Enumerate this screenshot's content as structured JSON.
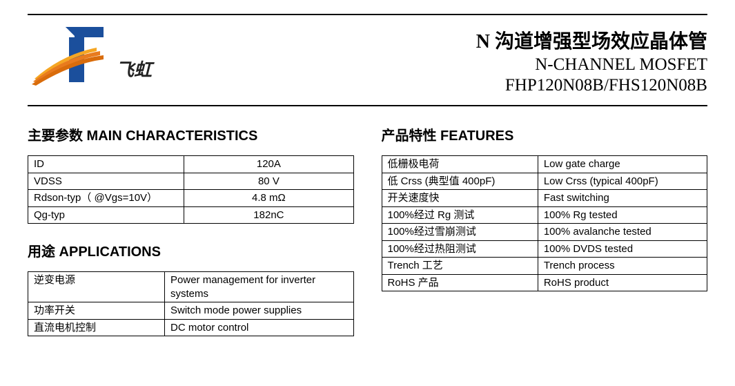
{
  "header": {
    "brand": "飞虹",
    "title_cn": "N 沟道增强型场效应晶体管",
    "title_en": "N-CHANNEL MOSFET",
    "part_no": "FHP120N08B/FHS120N08B"
  },
  "sections": {
    "main_char_title": "主要参数 MAIN CHARACTERISTICS",
    "applications_title": "用途 APPLICATIONS",
    "features_title": "产品特性 FEATURES"
  },
  "main_characteristics": [
    {
      "param": "ID",
      "value": "120A"
    },
    {
      "param": "VDSS",
      "value": "80 V"
    },
    {
      "param": "Rdson-typ（ @Vgs=10V）",
      "value": "4.8 mΩ"
    },
    {
      "param": "Qg-typ",
      "value": "182nC"
    }
  ],
  "applications": [
    {
      "cn": "逆变电源",
      "en": "Power management for inverter systems"
    },
    {
      "cn": "功率开关",
      "en": "Switch mode power supplies"
    },
    {
      "cn": "直流电机控制",
      "en": "DC motor control"
    }
  ],
  "features": [
    {
      "cn": "低栅极电荷",
      "en": "Low gate charge"
    },
    {
      "cn": "低 Crss (典型值  400pF)",
      "en": "Low Crss (typical 400pF)"
    },
    {
      "cn": "开关速度快",
      "en": "Fast switching"
    },
    {
      "cn": "100%经过 Rg 测试",
      "en": "100% Rg tested"
    },
    {
      "cn": "100%经过雪崩测试",
      "en": "100% avalanche tested"
    },
    {
      "cn": "100%经过热阻测试",
      "en": "100% DVDS tested"
    },
    {
      "cn": "Trench 工艺",
      "en": "Trench process"
    },
    {
      "cn": "RoHS 产品",
      "en": "RoHS product"
    }
  ],
  "logo_colors": {
    "blue": "#1b4f9c",
    "orange1": "#f5a623",
    "orange2": "#e87b1e",
    "orange3": "#d96c0b"
  }
}
